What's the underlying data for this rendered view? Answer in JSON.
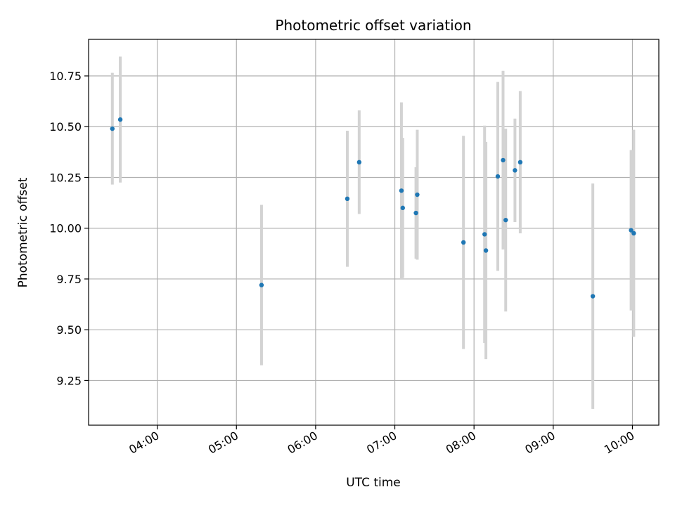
{
  "chart_data": {
    "type": "scatter",
    "title": "Photometric offset variation",
    "xlabel": "UTC time",
    "ylabel": "Photometric offset",
    "x_unit": "UTC time (HH:MM)",
    "xlim": [
      "03:08",
      "10:20"
    ],
    "ylim": [
      9.03,
      10.93
    ],
    "grid": true,
    "legend": "none",
    "x_ticks": [
      "04:00",
      "05:00",
      "06:00",
      "07:00",
      "08:00",
      "09:00",
      "10:00"
    ],
    "y_ticks": [
      "9.25",
      "9.50",
      "9.75",
      "10.00",
      "10.25",
      "10.50",
      "10.75"
    ],
    "marker_color": "#1f77b4",
    "errorbar_color": "#d3d3d3",
    "series": [
      {
        "points": [
          {
            "x": "03:26",
            "y": 10.49,
            "yerr": 0.275
          },
          {
            "x": "03:32",
            "y": 10.535,
            "yerr": 0.31
          },
          {
            "x": "05:19",
            "y": 9.72,
            "yerr": 0.395
          },
          {
            "x": "06:24",
            "y": 10.145,
            "yerr": 0.335
          },
          {
            "x": "06:33",
            "y": 10.325,
            "yerr": 0.255
          },
          {
            "x": "07:05",
            "y": 10.185,
            "yerr": 0.435
          },
          {
            "x": "07:06",
            "y": 10.1,
            "yerr": 0.345
          },
          {
            "x": "07:17",
            "y": 10.165,
            "yerr": 0.32
          },
          {
            "x": "07:16",
            "y": 10.075,
            "yerr": 0.225
          },
          {
            "x": "07:52",
            "y": 9.93,
            "yerr": 0.525
          },
          {
            "x": "08:08",
            "y": 9.97,
            "yerr": 0.535
          },
          {
            "x": "08:09",
            "y": 9.89,
            "yerr": 0.535
          },
          {
            "x": "08:18",
            "y": 10.255,
            "yerr": 0.465
          },
          {
            "x": "08:22",
            "y": 10.335,
            "yerr": 0.44
          },
          {
            "x": "08:24",
            "y": 10.04,
            "yerr": 0.45
          },
          {
            "x": "08:31",
            "y": 10.285,
            "yerr": 0.255
          },
          {
            "x": "08:35",
            "y": 10.325,
            "yerr": 0.35
          },
          {
            "x": "09:30",
            "y": 9.665,
            "yerr": 0.555
          },
          {
            "x": "09:59",
            "y": 9.99,
            "yerr": 0.395
          },
          {
            "x": "10:01",
            "y": 9.975,
            "yerr": 0.51
          }
        ]
      }
    ]
  }
}
